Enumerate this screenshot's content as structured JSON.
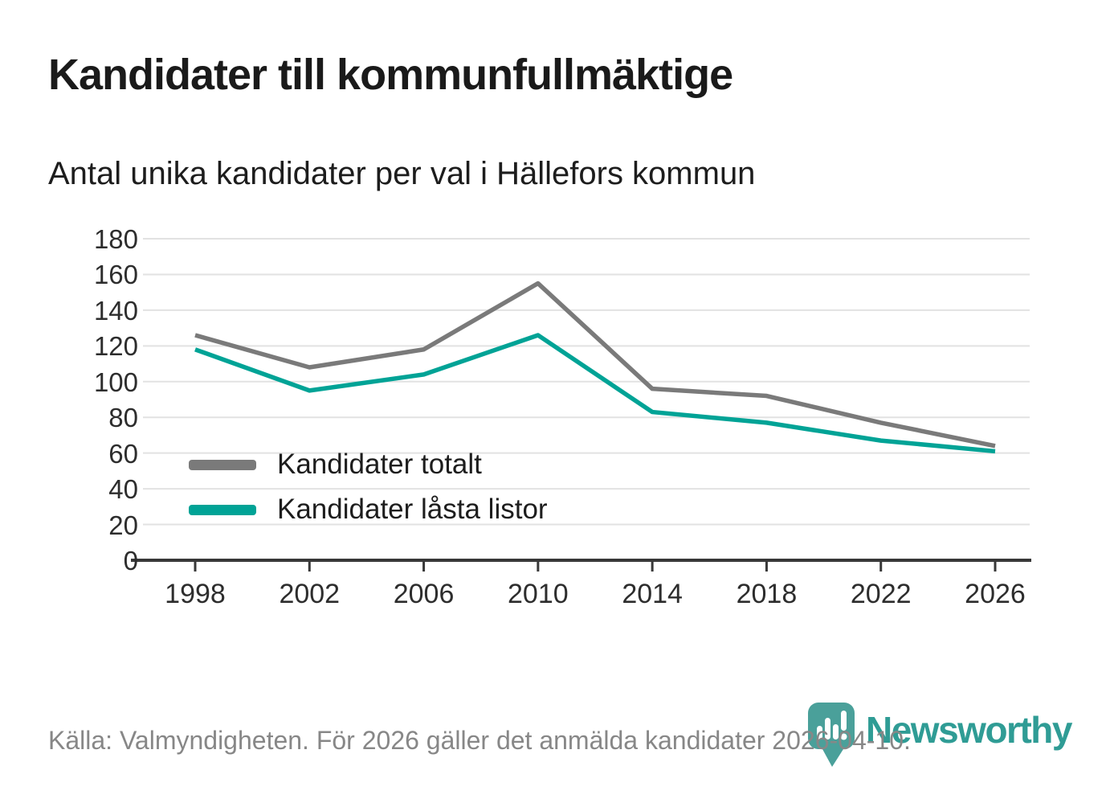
{
  "header": {
    "title": "Kandidater till kommunfullmäktige",
    "subtitle": "Antal unika kandidater per val i Hällefors kommun"
  },
  "chart_data": {
    "type": "line",
    "title": "Kandidater till kommunfullmäktige",
    "subtitle": "Antal unika kandidater per val i Hällefors kommun",
    "x": [
      1998,
      2002,
      2006,
      2010,
      2014,
      2018,
      2022,
      2026
    ],
    "series": [
      {
        "name": "Kandidater totalt",
        "color": "#7a7a7a",
        "values": [
          126,
          108,
          118,
          155,
          96,
          92,
          77,
          64
        ]
      },
      {
        "name": "Kandidater låsta listor",
        "color": "#00a396",
        "values": [
          118,
          95,
          104,
          126,
          83,
          77,
          67,
          61
        ]
      }
    ],
    "ylim": [
      0,
      180
    ],
    "yticks": [
      0,
      20,
      40,
      60,
      80,
      100,
      120,
      140,
      160,
      180
    ],
    "grid": "horizontal",
    "legend_position": "inside-lower-left",
    "axis_color": "#383838",
    "grid_color": "#e2e2e2"
  },
  "footer": {
    "source_text": "Källa: Valmyndigheten. För 2026 gäller det anmälda kandidater 2026-04-10."
  },
  "logo": {
    "wordmark": "Newsworthy",
    "icon": "newsworthy-pin-barchart-icon",
    "wordmark_color": "#2f9c95",
    "icon_color": "#4aa09a"
  }
}
